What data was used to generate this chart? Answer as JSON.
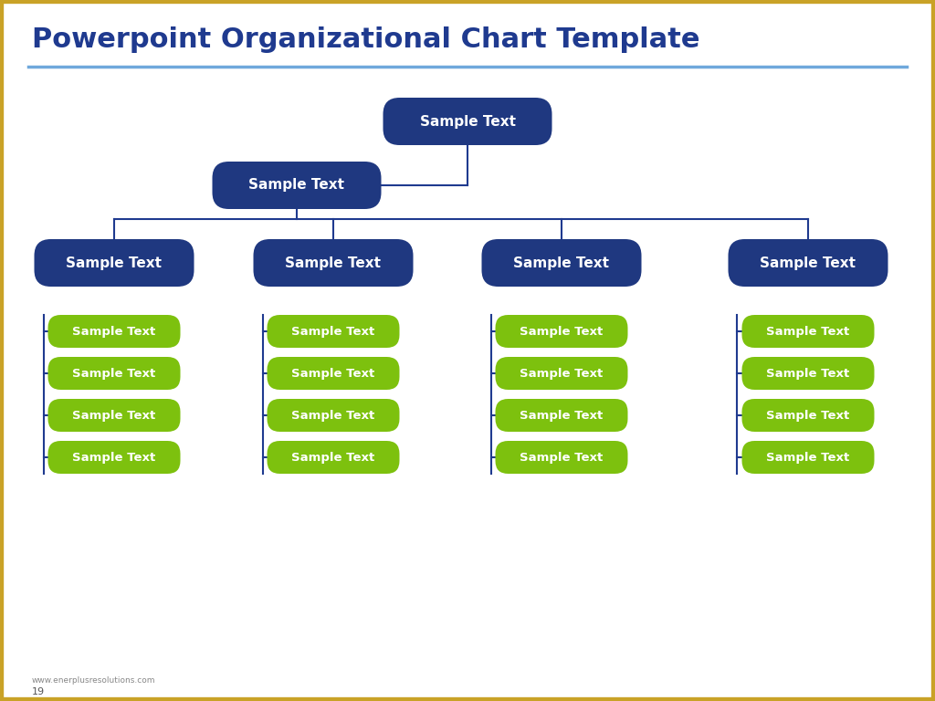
{
  "title": "Powerpoint Organizational Chart Template",
  "title_color": "#1F3A8F",
  "title_fontsize": 22,
  "border_color": "#C9A227",
  "line_color": "#1F3A8F",
  "header_line_color": "#6FA8DC",
  "background_color": "#FFFFFF",
  "node_dark_color": "#1F3880",
  "node_green_color": "#7DC10E",
  "node_text_color": "#FFFFFF",
  "label_text": "Sample Text",
  "footer_text": "www.enerplusresolutions.com",
  "page_number": "19"
}
